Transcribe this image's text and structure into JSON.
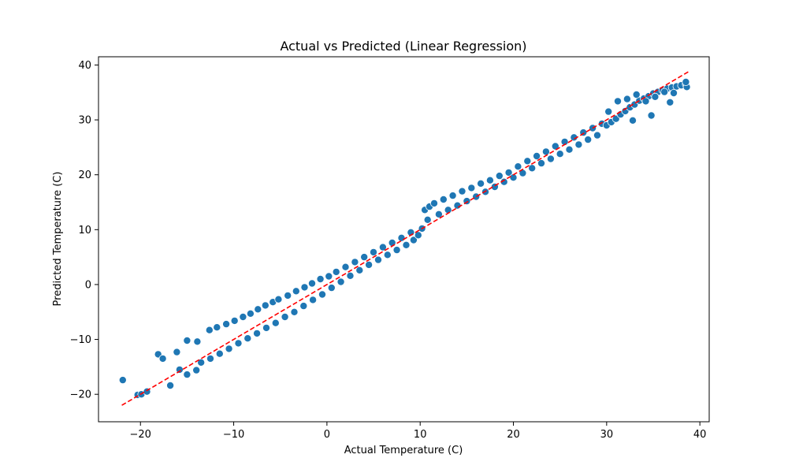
{
  "chart_data": {
    "type": "scatter",
    "title": "Actual vs Predicted (Linear Regression)",
    "xlabel": "Actual Temperature (C)",
    "ylabel": "Predicted Temperature (C)",
    "xlim": [
      -24.5,
      41.0
    ],
    "ylim": [
      -25.0,
      41.5
    ],
    "xticks": [
      -20,
      -10,
      0,
      10,
      20,
      30,
      40
    ],
    "yticks": [
      -20,
      -10,
      0,
      10,
      20,
      30,
      40
    ],
    "grid": false,
    "colors": {
      "points": "#1f77b4",
      "point_edge": "#ffffff",
      "reference_line": "#ff0000",
      "axes": "#000000"
    },
    "reference_line": {
      "style": "dashed",
      "x": [
        -22,
        38.8
      ],
      "y": [
        -22,
        38.8
      ]
    },
    "series": [
      {
        "x": [
          -21.9,
          -20.3,
          -19.9,
          -19.3,
          -18.1,
          -17.6,
          -16.8,
          -16.1,
          -15.8,
          -15.0,
          -15.0,
          -14.0,
          -13.9,
          -12.6,
          -11.8,
          -10.8,
          -9.9,
          -9.0,
          -8.2,
          -7.4,
          -6.6,
          -5.8,
          -5.2,
          -4.2,
          -3.3,
          -2.4,
          -1.6,
          -0.7,
          -13.5,
          -12.5,
          -11.5,
          -10.5,
          -9.5,
          -8.5,
          -7.5,
          -6.5,
          -5.5,
          -4.5,
          -3.5,
          -2.5,
          -1.5,
          -0.5,
          0.5,
          1.5,
          2.5,
          3.5,
          4.5,
          5.5,
          6.5,
          7.5,
          8.5,
          9.3,
          0.2,
          1.0,
          2.0,
          3.0,
          4.0,
          5.0,
          6.0,
          7.0,
          8.0,
          9.0,
          9.8,
          10.2,
          10.5,
          11.0,
          11.5,
          12.5,
          13.5,
          14.5,
          15.5,
          16.5,
          17.5,
          18.5,
          19.5,
          10.8,
          12.0,
          13.0,
          14.0,
          15.0,
          16.0,
          17.0,
          18.0,
          19.0,
          20.0,
          21.0,
          22.0,
          23.0,
          24.0,
          25.0,
          26.0,
          27.0,
          28.0,
          29.0,
          20.5,
          21.5,
          22.5,
          23.5,
          24.5,
          25.5,
          26.5,
          27.5,
          28.5,
          29.5,
          30.0,
          30.5,
          31.0,
          31.5,
          32.0,
          32.5,
          33.0,
          33.5,
          34.0,
          34.5,
          35.0,
          35.5,
          36.0,
          36.5,
          37.0,
          37.5,
          38.0,
          38.5,
          32.2,
          33.2,
          34.2,
          35.2,
          36.2,
          37.2,
          30.2,
          31.2,
          32.8,
          34.8,
          36.8,
          38.6,
          38.5
        ],
        "y": [
          -17.4,
          -20.1,
          -20.0,
          -19.5,
          -12.7,
          -13.5,
          -18.4,
          -12.3,
          -15.5,
          -10.2,
          -16.4,
          -15.6,
          -10.4,
          -8.3,
          -7.8,
          -7.2,
          -6.6,
          -5.9,
          -5.3,
          -4.5,
          -3.8,
          -3.2,
          -2.7,
          -2.0,
          -1.2,
          -0.5,
          0.2,
          1.0,
          -14.2,
          -13.5,
          -12.6,
          -11.7,
          -10.7,
          -9.8,
          -8.9,
          -7.9,
          -7.0,
          -5.9,
          -5.0,
          -3.9,
          -2.8,
          -1.8,
          -0.6,
          0.5,
          1.6,
          2.6,
          3.6,
          4.5,
          5.4,
          6.3,
          7.2,
          8.1,
          1.5,
          2.3,
          3.2,
          4.1,
          5.0,
          5.9,
          6.8,
          7.6,
          8.5,
          9.5,
          9.0,
          10.2,
          13.6,
          14.2,
          14.8,
          15.5,
          16.2,
          17.0,
          17.6,
          18.4,
          19.0,
          19.8,
          20.4,
          11.8,
          12.8,
          13.6,
          14.4,
          15.2,
          16.0,
          16.9,
          17.8,
          18.7,
          19.5,
          20.3,
          21.2,
          22.1,
          22.9,
          23.8,
          24.6,
          25.5,
          26.4,
          27.2,
          21.5,
          22.5,
          23.4,
          24.2,
          25.2,
          26.0,
          26.8,
          27.7,
          28.5,
          29.3,
          29.0,
          29.6,
          30.2,
          31.0,
          31.6,
          32.3,
          32.8,
          33.5,
          33.9,
          34.3,
          34.8,
          35.1,
          35.4,
          35.7,
          35.9,
          36.1,
          36.3,
          36.5,
          33.8,
          34.6,
          33.4,
          34.2,
          35.1,
          34.9,
          31.5,
          33.4,
          29.9,
          30.8,
          33.2,
          36.0,
          36.9
        ]
      }
    ]
  }
}
